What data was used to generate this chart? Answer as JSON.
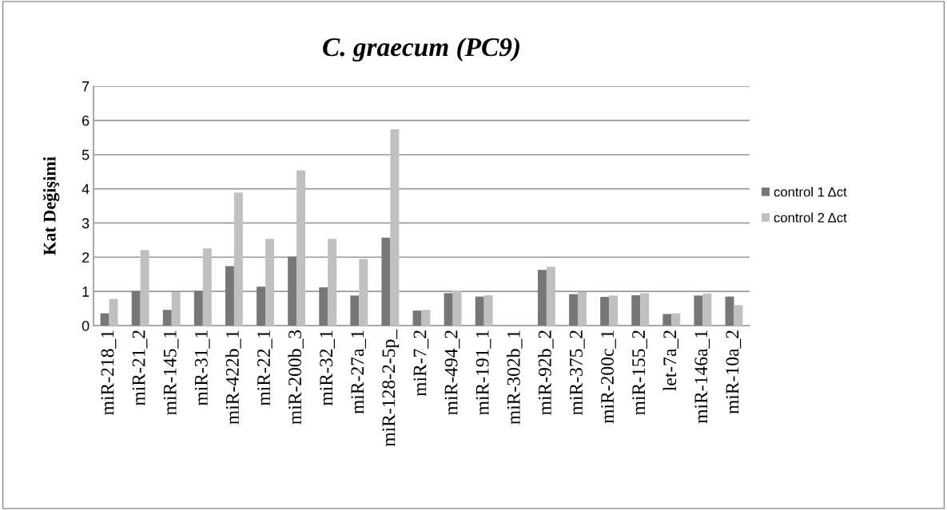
{
  "chart_data": {
    "type": "bar",
    "title": "C. graecum (PC9)",
    "ylabel": "Kat Değişimi",
    "categories": [
      "miR-218_1",
      "miR-21_2",
      "miR-145_1",
      "miR-31_1",
      "miR-422b_1",
      "miR-22_1",
      "miR-200b_3",
      "miR-32_1",
      "miR-27a_1",
      "miR-128-2-5p_",
      "miR-7_2",
      "miR-494_2",
      "miR-191_1",
      "miR-302b_1",
      "miR-92b_2",
      "miR-375_2",
      "miR-200c_1",
      "miR-155_2",
      "let-7a_2",
      "miR-146a_1",
      "miR-10a_2"
    ],
    "series": [
      {
        "name": "control 1 Δct",
        "color": "#777777",
        "values": [
          0.36,
          1.01,
          0.46,
          1.02,
          1.74,
          1.14,
          2.02,
          1.12,
          0.88,
          2.57,
          0.44,
          0.95,
          0.85,
          null,
          1.63,
          0.92,
          0.84,
          0.89,
          0.34,
          0.88,
          0.85
        ]
      },
      {
        "name": "control 2 Δct",
        "color": "#c0c0c0",
        "values": [
          0.78,
          2.21,
          0.98,
          2.26,
          3.89,
          2.54,
          4.54,
          2.54,
          1.95,
          5.74,
          0.46,
          1.02,
          0.89,
          null,
          1.72,
          0.98,
          0.88,
          0.95,
          0.36,
          0.94,
          0.6
        ]
      }
    ],
    "ylim": [
      0,
      7
    ],
    "yticks": [
      0,
      1,
      2,
      3,
      4,
      5,
      6,
      7
    ],
    "grid": "y",
    "legend": "right"
  }
}
